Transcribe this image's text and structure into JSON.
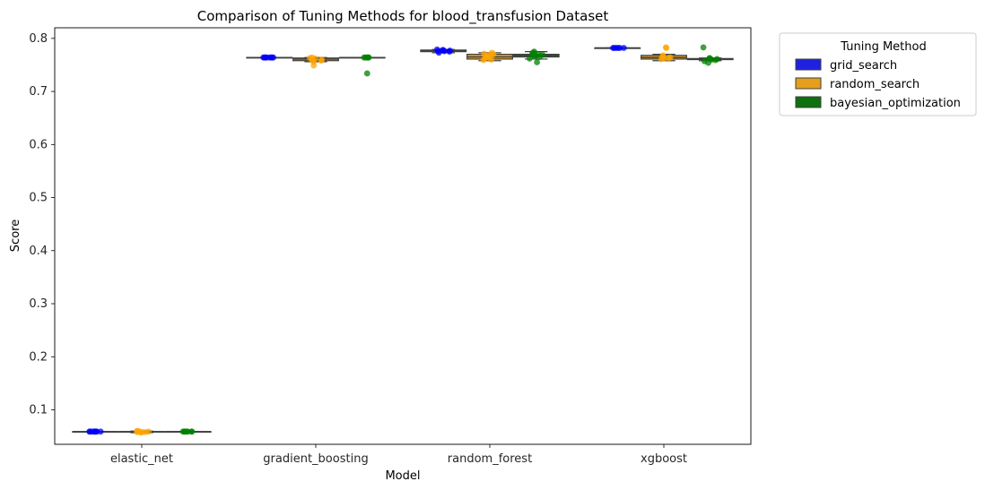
{
  "chart_data": {
    "type": "box",
    "title": "Comparison of Tuning Methods for blood_transfusion Dataset",
    "xlabel": "Model",
    "ylabel": "Score",
    "ylim": [
      0.035,
      0.82
    ],
    "yticks": [
      0.1,
      0.2,
      0.3,
      0.4,
      0.5,
      0.6,
      0.7,
      0.8
    ],
    "categories": [
      "elastic_net",
      "gradient_boosting",
      "random_forest",
      "xgboost"
    ],
    "legend": {
      "title": "Tuning Method",
      "position": "outside-top-right"
    },
    "series": [
      {
        "name": "grid_search",
        "color": "#2020e0",
        "point_color": "#0000ff",
        "boxes": [
          {
            "min": 0.059,
            "q1": 0.059,
            "median": 0.059,
            "q3": 0.059,
            "max": 0.059
          },
          {
            "min": 0.764,
            "q1": 0.764,
            "median": 0.764,
            "q3": 0.764,
            "max": 0.764
          },
          {
            "min": 0.773,
            "q1": 0.775,
            "median": 0.777,
            "q3": 0.778,
            "max": 0.779
          },
          {
            "min": 0.782,
            "q1": 0.782,
            "median": 0.782,
            "q3": 0.782,
            "max": 0.782
          }
        ],
        "points": [
          [
            0.059,
            0.059,
            0.059,
            0.059,
            0.059,
            0.059,
            0.059,
            0.059,
            0.059,
            0.059
          ],
          [
            0.764,
            0.764,
            0.764,
            0.764,
            0.764,
            0.764,
            0.764,
            0.764
          ],
          [
            0.776,
            0.778,
            0.773,
            0.779,
            0.775,
            0.777,
            0.776,
            0.778
          ],
          [
            0.782,
            0.782,
            0.782,
            0.782,
            0.782,
            0.782
          ]
        ]
      },
      {
        "name": "random_search",
        "color": "#e69f1a",
        "point_color": "#ffa500",
        "boxes": [
          {
            "min": 0.057,
            "q1": 0.058,
            "median": 0.059,
            "q3": 0.059,
            "max": 0.06
          },
          {
            "min": 0.756,
            "q1": 0.758,
            "median": 0.761,
            "q3": 0.763,
            "max": 0.764
          },
          {
            "min": 0.758,
            "q1": 0.761,
            "median": 0.765,
            "q3": 0.77,
            "max": 0.773
          },
          {
            "min": 0.758,
            "q1": 0.761,
            "median": 0.764,
            "q3": 0.768,
            "max": 0.77
          }
        ],
        "points": [
          [
            0.058,
            0.059,
            0.057,
            0.06,
            0.058,
            0.059,
            0.06,
            0.058
          ],
          [
            0.749,
            0.756,
            0.763,
            0.76,
            0.764,
            0.758,
            0.762,
            0.759
          ],
          [
            0.76,
            0.765,
            0.77,
            0.773,
            0.762,
            0.767,
            0.764,
            0.771,
            0.759,
            0.768
          ],
          [
            0.782,
            0.783,
            0.764,
            0.761,
            0.766,
            0.762,
            0.768,
            0.763
          ]
        ]
      },
      {
        "name": "bayesian_optimization",
        "color": "#0f700f",
        "point_color": "#008000",
        "boxes": [
          {
            "min": 0.059,
            "q1": 0.059,
            "median": 0.059,
            "q3": 0.059,
            "max": 0.059
          },
          {
            "min": 0.764,
            "q1": 0.764,
            "median": 0.764,
            "q3": 0.764,
            "max": 0.764
          },
          {
            "min": 0.761,
            "q1": 0.765,
            "median": 0.768,
            "q3": 0.77,
            "max": 0.775
          },
          {
            "min": 0.758,
            "q1": 0.76,
            "median": 0.761,
            "q3": 0.762,
            "max": 0.763
          }
        ],
        "points": [
          [
            0.059,
            0.059,
            0.059,
            0.059,
            0.059,
            0.059,
            0.059,
            0.059
          ],
          [
            0.734,
            0.764,
            0.764,
            0.764,
            0.764,
            0.764
          ],
          [
            0.755,
            0.762,
            0.768,
            0.775,
            0.771,
            0.766,
            0.77,
            0.765,
            0.773,
            0.769
          ],
          [
            0.783,
            0.754,
            0.76,
            0.762,
            0.757,
            0.761,
            0.763,
            0.759
          ]
        ]
      }
    ]
  }
}
